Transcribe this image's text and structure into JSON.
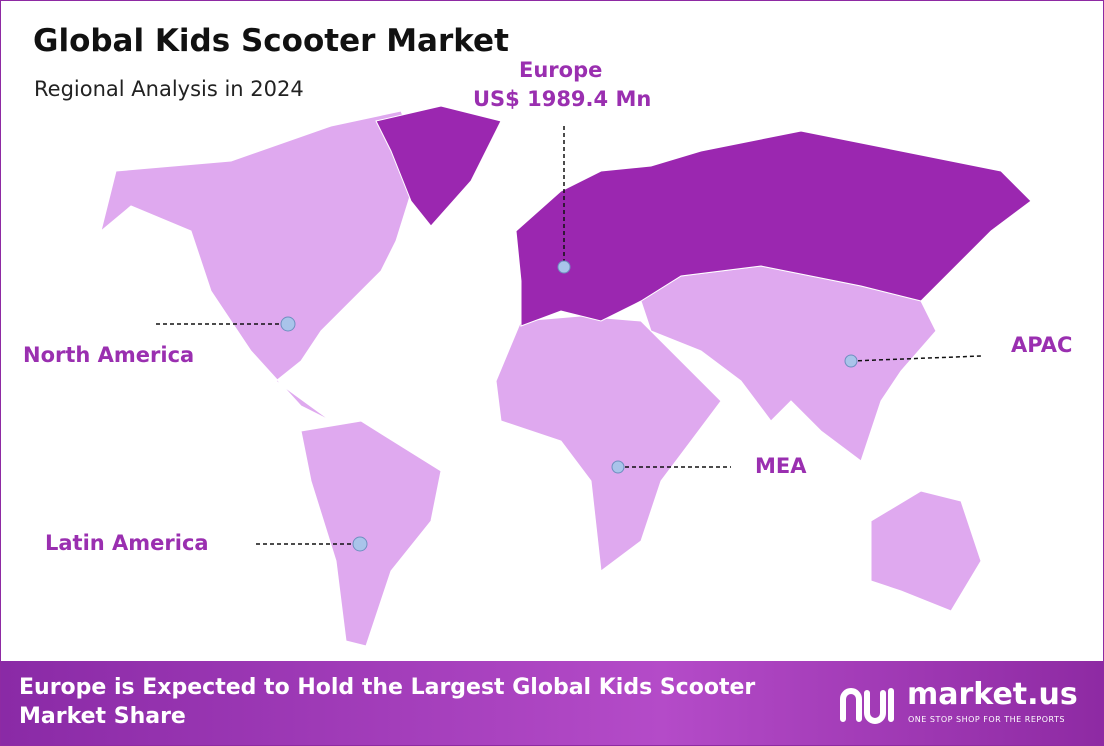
{
  "header": {
    "title": "Global Kids Scooter Market",
    "subtitle": "Regional Analysis in 2024"
  },
  "regions": [
    {
      "label": "Europe",
      "value": "US$ 1989.4 Mn"
    },
    {
      "label": "North America"
    },
    {
      "label": "APAC"
    },
    {
      "label": "MEA"
    },
    {
      "label": "Latin America"
    }
  ],
  "footer": {
    "text": "Europe is Expected to Hold the Largest Global Kids Scooter Market Share",
    "brand": "market.us",
    "tagline": "ONE STOP SHOP FOR THE REPORTS"
  }
}
